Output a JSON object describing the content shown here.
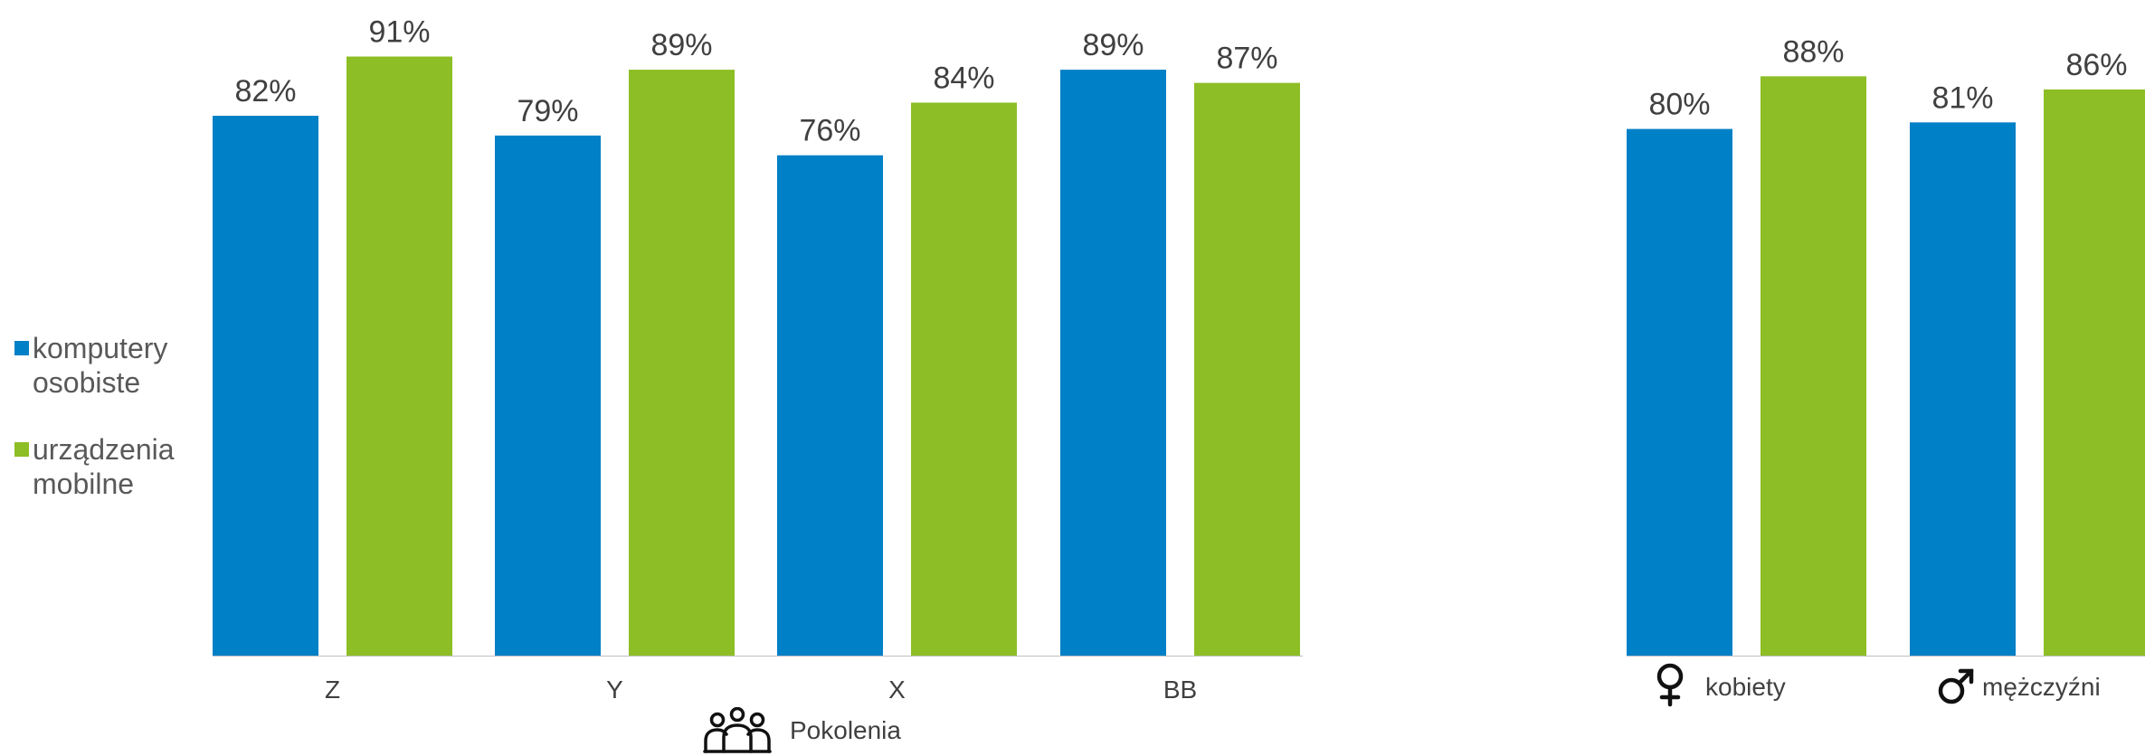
{
  "colors": {
    "computers": "#0080C6",
    "mobile": "#8DBE25",
    "value_text": "#404040",
    "axis_line": "#BFBFBF"
  },
  "legend": {
    "items": [
      {
        "label": "komputery osobiste",
        "color": "#0080C6"
      },
      {
        "label": "urządzenia mobilne",
        "color": "#8DBE25"
      }
    ]
  },
  "captions": {
    "generations": "Pokolenia",
    "generations_icon": "people-group-icon"
  },
  "chart_data": [
    {
      "type": "bar",
      "categories": [
        "Z",
        "Y",
        "X",
        "BB"
      ],
      "series": [
        {
          "name": "komputery osobiste",
          "values": [
            82,
            79,
            76,
            89
          ],
          "labels": [
            "82%",
            "79%",
            "76%",
            "89%"
          ]
        },
        {
          "name": "urządzenia mobilne",
          "values": [
            91,
            89,
            84,
            87
          ],
          "labels": [
            "91%",
            "89%",
            "84%",
            "87%"
          ]
        }
      ],
      "ylim": [
        0,
        100
      ],
      "grid": false,
      "legend_position": "left",
      "xlabel": "Pokolenia"
    },
    {
      "type": "bar",
      "categories": [
        "kobiety",
        "mężczyźni"
      ],
      "category_icons": [
        "female-symbol-icon",
        "male-symbol-icon"
      ],
      "series": [
        {
          "name": "komputery osobiste",
          "values": [
            80,
            81
          ],
          "labels": [
            "80%",
            "81%"
          ]
        },
        {
          "name": "urządzenia mobilne",
          "values": [
            88,
            86
          ],
          "labels": [
            "88%",
            "86%"
          ]
        }
      ],
      "ylim": [
        0,
        100
      ],
      "grid": false
    }
  ]
}
